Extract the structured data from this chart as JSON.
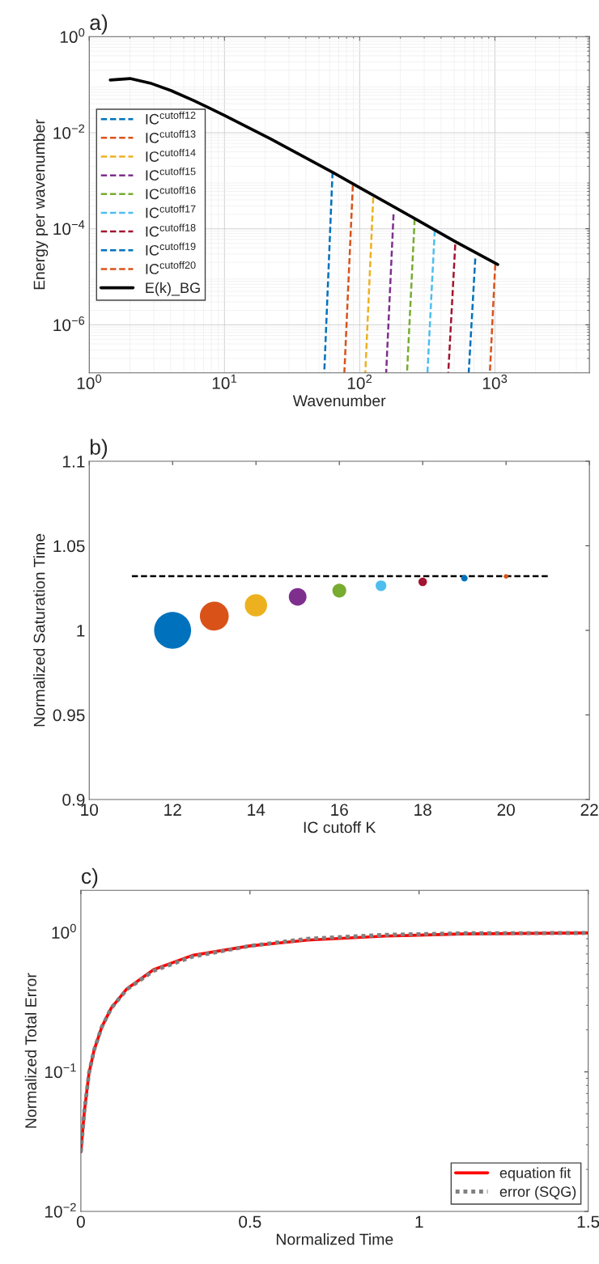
{
  "chart_data": [
    {
      "type": "line",
      "title": "a)",
      "xlabel": "Wavenumber",
      "ylabel": "Energy per wavenumber",
      "log": "xy",
      "grid": true,
      "legend": "left",
      "xlim": [
        1,
        5000
      ],
      "xticks": [
        {
          "value": 1,
          "label": "10$^{0}$"
        },
        {
          "value": 10,
          "label": "10$^{1}$"
        },
        {
          "value": 100,
          "label": "10$^{2}$"
        },
        {
          "value": 1000,
          "label": "10$^{3}$"
        }
      ],
      "ylim": [
        1e-07,
        1
      ],
      "yticks": [
        {
          "value": 1e-06,
          "label": "10$^{−6}$"
        },
        {
          "value": 0.0001,
          "label": "10$^{−4}$"
        },
        {
          "value": 0.01,
          "label": "10$^{−2}$"
        },
        {
          "value": 1,
          "label": "10$^{0}$"
        }
      ],
      "series": [
        {
          "name": "IC$^{cutoff12}$",
          "color": "#0072bd",
          "line_style": "dashed",
          "x": [
            54.7,
            63
          ],
          "values": [
            1e-07,
            0.0015
          ]
        },
        {
          "name": "IC$^{cutoff13}$",
          "color": "#d95319",
          "line_style": "dashed",
          "x": [
            77,
            89
          ],
          "values": [
            1e-07,
            0.0008
          ]
        },
        {
          "name": "IC$^{cutoff14}$",
          "color": "#edb120",
          "line_style": "dashed",
          "x": [
            110,
            126
          ],
          "values": [
            1e-07,
            0.00045
          ]
        },
        {
          "name": "IC$^{cutoff15}$",
          "color": "#7e2f8e",
          "line_style": "dashed",
          "x": [
            157,
            178
          ],
          "values": [
            1e-07,
            0.0002
          ]
        },
        {
          "name": "IC$^{cutoff16}$",
          "color": "#77ac30",
          "line_style": "dashed",
          "x": [
            224,
            255
          ],
          "values": [
            1e-07,
            0.00016
          ]
        },
        {
          "name": "IC$^{cutoff17}$",
          "color": "#4dbeee",
          "line_style": "dashed",
          "x": [
            317,
            359
          ],
          "values": [
            1e-07,
            9.3e-05
          ]
        },
        {
          "name": "IC$^{cutoff18}$",
          "color": "#a2142f",
          "line_style": "dashed",
          "x": [
            452,
            509
          ],
          "values": [
            1e-07,
            4.7e-05
          ]
        },
        {
          "name": "IC$^{cutoff19}$",
          "color": "#0072bd",
          "line_style": "dashed",
          "x": [
            640,
            716
          ],
          "values": [
            1e-07,
            2.4e-05
          ]
        },
        {
          "name": "IC$^{cutoff20}$",
          "color": "#d95319",
          "line_style": "dashed",
          "x": [
            918,
            1006
          ],
          "values": [
            1e-07,
            1.8e-05
          ]
        },
        {
          "name": "E(k)_BG",
          "color": "#000000",
          "line_style": "solid",
          "x": [
            1.43,
            2,
            2.82,
            4,
            5.9,
            10,
            21.8,
            63,
            100,
            218,
            510,
            1050
          ],
          "values": [
            0.125,
            0.134,
            0.108,
            0.076,
            0.047,
            0.023,
            0.0075,
            0.0015,
            0.00072,
            0.00021,
            5.4e-05,
            1.8e-05
          ]
        }
      ]
    },
    {
      "type": "bubble",
      "title": "b)",
      "xlabel": "IC cutoff K",
      "ylabel": "Normalized Saturation Time",
      "grid": false,
      "xlim": [
        10,
        22
      ],
      "xticks": [
        10,
        12,
        14,
        16,
        18,
        20,
        22
      ],
      "ylim": [
        0.9,
        1.1
      ],
      "yticks": [
        0.9,
        0.95,
        1,
        1.05,
        1.1
      ],
      "series": [
        {
          "type": "bubble",
          "x": [
            12,
            13,
            14,
            15,
            16,
            17,
            18,
            19,
            20
          ],
          "values": [
            1.0,
            1.0084,
            1.0148,
            1.0198,
            1.0235,
            1.0264,
            1.0287,
            1.0308,
            1.0319
          ],
          "sizes": [
            1,
            0.61,
            0.365,
            0.23,
            0.14,
            0.085,
            0.053,
            0.031,
            0.016
          ],
          "colors": [
            "#0072bd",
            "#d95319",
            "#edb120",
            "#7e2f8e",
            "#77ac30",
            "#4dbeee",
            "#a2142f",
            "#0072bd",
            "#d95319"
          ]
        },
        {
          "type": "line",
          "color": "#000000",
          "line_style": "dashed",
          "x": [
            11,
            21
          ],
          "values": [
            1.032,
            1.032
          ]
        }
      ]
    },
    {
      "type": "line",
      "title": "c)",
      "xlabel": "Normalized Time",
      "ylabel": "Normalized Total Error",
      "log": "y",
      "grid": false,
      "legend": "bottom right",
      "xlim": [
        0,
        1.5
      ],
      "xticks": [
        0,
        0.5,
        1,
        1.5
      ],
      "ylim": [
        0.01,
        2
      ],
      "yticks": [
        {
          "value": 0.01,
          "label": "10$^{−2}$"
        },
        {
          "value": 0.1,
          "label": "10$^{−1}$"
        },
        {
          "value": 1,
          "label": "10$^{0}$"
        }
      ],
      "series": [
        {
          "name": "equation fit",
          "color": "#ff0000",
          "line_style": "solid",
          "x": [
            0,
            0.0103,
            0.024,
            0.039,
            0.0616,
            0.09,
            0.136,
            0.215,
            0.33,
            0.5,
            0.67,
            0.9,
            1.128,
            1.5
          ],
          "values": [
            0.0267,
            0.052,
            0.098,
            0.143,
            0.209,
            0.287,
            0.394,
            0.541,
            0.684,
            0.8,
            0.88,
            0.94,
            0.975,
            0.99
          ]
        },
        {
          "name": "error (SQG)",
          "color": "#808080",
          "line_style": "dotted",
          "x": [
            0,
            0.0103,
            0.024,
            0.039,
            0.0616,
            0.09,
            0.136,
            0.215,
            0.33,
            0.5,
            0.67,
            0.9,
            1.128,
            1.5
          ],
          "values": [
            0.0267,
            0.052,
            0.098,
            0.143,
            0.209,
            0.287,
            0.39,
            0.53,
            0.67,
            0.8,
            0.9,
            0.96,
            0.985,
            0.99
          ]
        }
      ]
    }
  ]
}
